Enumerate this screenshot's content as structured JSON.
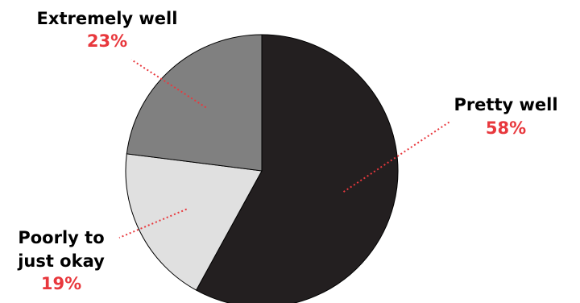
{
  "chart_data": {
    "type": "pie",
    "title": "",
    "start": "12 o'clock",
    "direction": "clockwise",
    "slices": [
      {
        "label": "Pretty well",
        "label_lines": [
          "Pretty well"
        ],
        "value": 58,
        "value_label": "58%",
        "color": "#231f20"
      },
      {
        "label": "Poorly to just okay",
        "label_lines": [
          "Poorly to",
          "just okay"
        ],
        "value": 19,
        "value_label": "19%",
        "color": "#e0e0e0"
      },
      {
        "label": "Extremely well",
        "label_lines": [
          "Extremely well"
        ],
        "value": 23,
        "value_label": "23%",
        "color": "#808080"
      }
    ],
    "value_label_color": "#e8383d",
    "leader_line_color": "#e8383d",
    "outline_color": "#000000",
    "legend": "none"
  }
}
